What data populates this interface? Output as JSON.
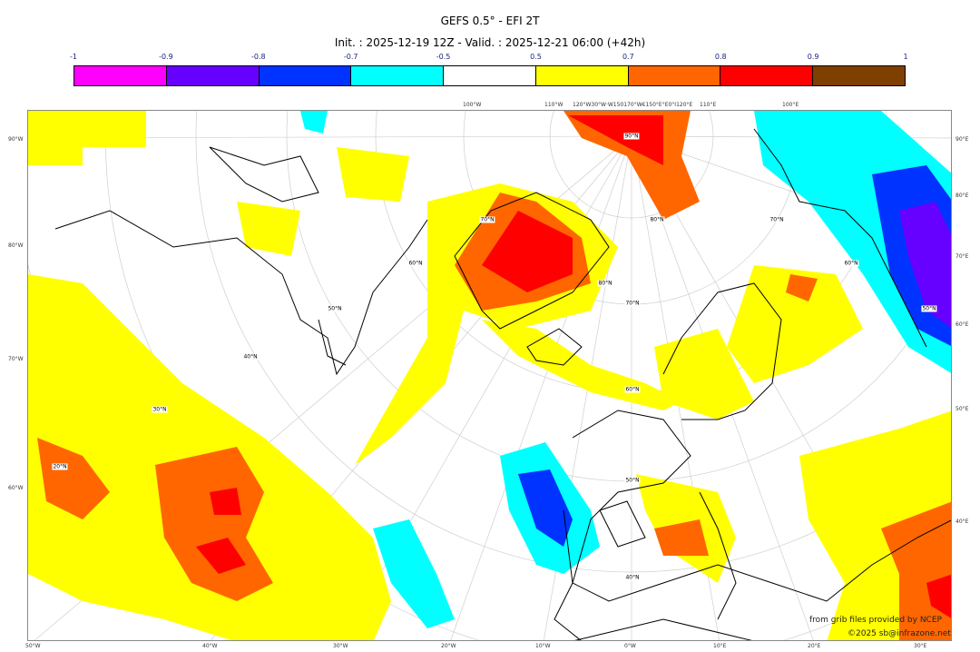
{
  "title": "GEFS 0.5° - EFI 2T",
  "subtitle": "Init. : 2025-12-19 12Z - Valid. : 2025-12-21 06:00 (+42h)",
  "colorbar": {
    "ticks": [
      "-1",
      "-0.9",
      "-0.8",
      "-0.7",
      "-0.5",
      "0.5",
      "0.7",
      "0.8",
      "0.9",
      "1"
    ],
    "colors": [
      "#ff00ff",
      "#6600ff",
      "#0033ff",
      "#00ffff",
      "#ffffff",
      "#ffff00",
      "#ff6600",
      "#ff0000",
      "#7f3f00"
    ]
  },
  "axes": {
    "left": [
      "90°W",
      "80°W",
      "70°W",
      "60°W"
    ],
    "right": [
      "90°E",
      "80°E",
      "70°E",
      "60°E",
      "50°E",
      "40°E"
    ],
    "bottom": [
      "50°W",
      "40°W",
      "30°W",
      "20°W",
      "10°W",
      "0°W",
      "10°E",
      "20°E",
      "30°E"
    ],
    "top": [
      "100°W",
      "110°W",
      "120°W30°W·W150170°W€150°E°E0°I120°E",
      "110°E",
      "100°E"
    ]
  },
  "lat_labels": [
    "90°N",
    "80°N",
    "70°N",
    "60°N",
    "50°N",
    "40°N",
    "30°N",
    "20°N",
    "80°N",
    "70°N",
    "60°N",
    "50°N",
    "40°N",
    "70°N",
    "60°N",
    "50°N"
  ],
  "credits": {
    "source": "from grib files provided by NCEP",
    "copyright": "©2025 sb@infrazone.net"
  }
}
